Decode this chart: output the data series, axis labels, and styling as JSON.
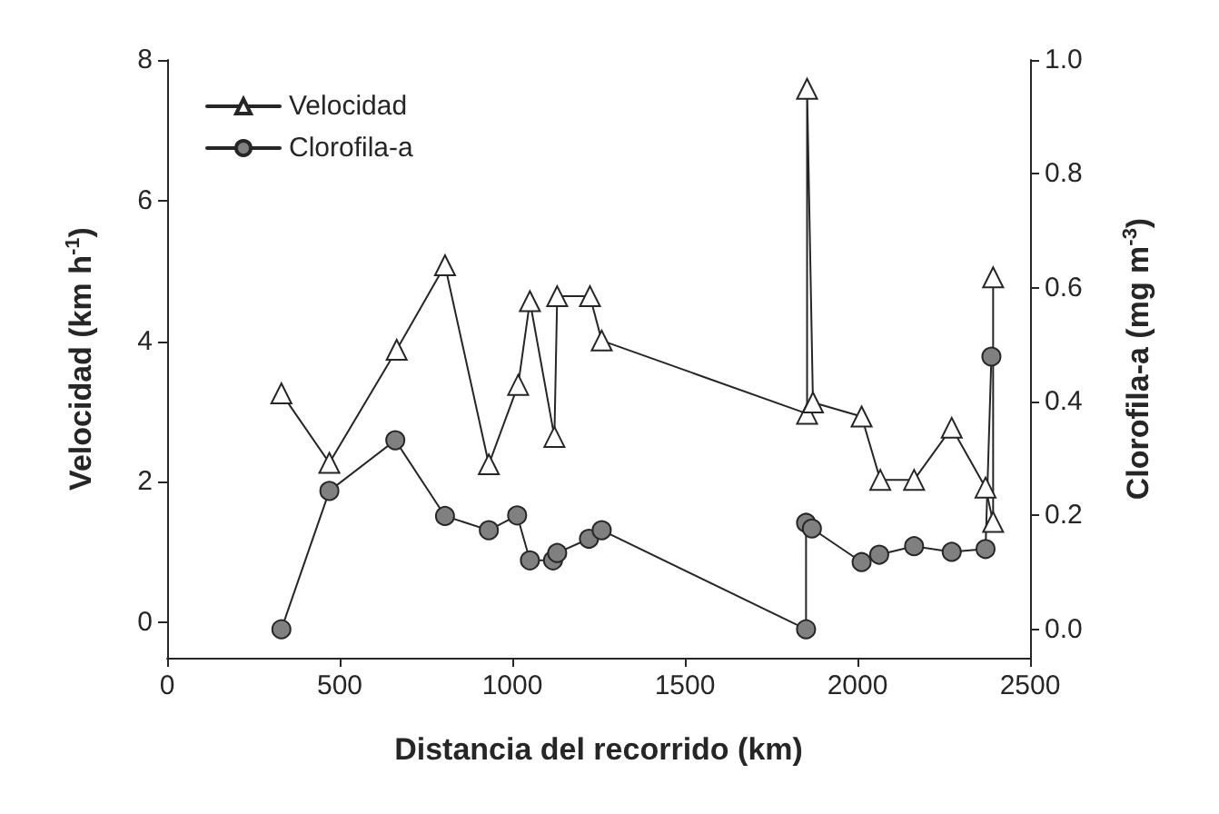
{
  "chart_data": {
    "type": "line",
    "xlabel": "Distancia del recorrido (km)",
    "ylabel": "Velocidad (km h$^{-1}$)",
    "y2label": "Clorofila-a (mg m$^{-3}$)",
    "xlim": [
      0,
      2500
    ],
    "xticks": [
      0,
      500,
      1000,
      1500,
      2000,
      2500
    ],
    "ylim": [
      -0.5,
      8
    ],
    "yticks": [
      0,
      2,
      4,
      6,
      8
    ],
    "y2lim": [
      -0.05,
      1.0
    ],
    "y2ticks": [
      {
        "value": 0,
        "label": "0.0"
      },
      {
        "value": 0.2,
        "label": "0.2"
      },
      {
        "value": 0.4,
        "label": "0.4"
      },
      {
        "value": 0.6,
        "label": "0.6"
      },
      {
        "value": 0.8,
        "label": "0.8"
      },
      {
        "value": 1.0,
        "label": "1.0"
      }
    ],
    "grid": false,
    "legend": "top left",
    "line_style": "solid",
    "series": [
      {
        "name": "Velocidad",
        "color": "#ffffff",
        "marker": "triangle",
        "x": [
          331,
          470,
          665,
          805,
          932,
          1017,
          1051,
          1122,
          1130,
          1225,
          1259,
          1854,
          1854,
          1871,
          2012,
          2066,
          2164,
          2273,
          2371,
          2393,
          2393
        ],
        "values": [
          3.26,
          2.27,
          3.88,
          5.08,
          2.25,
          3.38,
          4.57,
          2.64,
          4.64,
          4.64,
          4.01,
          2.97,
          7.59,
          3.13,
          2.93,
          2.03,
          2.03,
          2.77,
          1.92,
          1.43,
          4.91
        ]
      },
      {
        "name": "Clorofila-a",
        "color": "#808080",
        "marker": "circle",
        "axis": "y2",
        "x": [
          331,
          470,
          661,
          805,
          932,
          1014,
          1051,
          1118,
          1130,
          1222,
          1259,
          1851,
          1851,
          1868,
          2012,
          2063,
          2164,
          2273,
          2371,
          2388
        ],
        "values": [
          0.0,
          0.243,
          0.332,
          0.199,
          0.174,
          0.2,
          0.121,
          0.121,
          0.134,
          0.159,
          0.174,
          0.0,
          0.187,
          0.177,
          0.118,
          0.131,
          0.146,
          0.136,
          0.141,
          0.479
        ]
      }
    ]
  }
}
